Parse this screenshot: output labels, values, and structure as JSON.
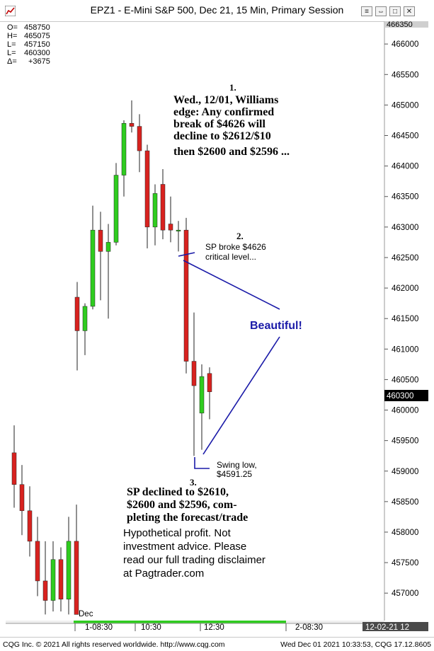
{
  "window": {
    "title": "EPZ1 - E-Mini S&P 500, Dec 21, 15 Min, Primary Session",
    "buttons": [
      "≡",
      "⇔",
      "□",
      "✕"
    ]
  },
  "ohlc_box": [
    {
      "k": "O=",
      "v": "458750"
    },
    {
      "k": "H=",
      "v": "465075"
    },
    {
      "k": "L=",
      "v": "457150"
    },
    {
      "k": "L=",
      "v": "460300"
    },
    {
      "k": "Δ=",
      "v": "+3675"
    }
  ],
  "colors": {
    "up": "#2fcc1f",
    "down": "#d8221f",
    "annotation": "#1a1aa8"
  },
  "chart_data": {
    "type": "candlestick",
    "ylim": [
      456550,
      466350
    ],
    "y_ticks": [
      "466000",
      "465500",
      "465000",
      "464500",
      "464000",
      "463500",
      "463000",
      "462500",
      "462000",
      "461500",
      "461000",
      "460500",
      "460000",
      "459500",
      "459000",
      "458500",
      "458000",
      "457500",
      "457000"
    ],
    "top_tick_label": "466350",
    "last_price_label": "460300",
    "last_price": 460300,
    "candles": [
      {
        "x": 0,
        "o": 459300,
        "h": 459750,
        "l": 458400,
        "c": 458780
      },
      {
        "x": 1,
        "o": 458780,
        "h": 459100,
        "l": 457950,
        "c": 458350
      },
      {
        "x": 2,
        "o": 458350,
        "h": 458750,
        "l": 457600,
        "c": 457850
      },
      {
        "x": 3,
        "o": 457850,
        "h": 458250,
        "l": 456950,
        "c": 457200
      },
      {
        "x": 4,
        "o": 457200,
        "h": 457850,
        "l": 456650,
        "c": 456880
      },
      {
        "x": 5,
        "o": 456880,
        "h": 457850,
        "l": 456700,
        "c": 457550
      },
      {
        "x": 6,
        "o": 457550,
        "h": 457750,
        "l": 456700,
        "c": 456900
      },
      {
        "x": 7,
        "o": 456900,
        "h": 458250,
        "l": 456650,
        "c": 457850
      },
      {
        "x": 8,
        "o": 457850,
        "h": 458450,
        "l": 456650,
        "c": 456650
      },
      {
        "x": 9,
        "o": 461850,
        "h": 462100,
        "l": 460650,
        "c": 461300
      },
      {
        "x": 10,
        "o": 461300,
        "h": 461750,
        "l": 460900,
        "c": 461700
      },
      {
        "x": 11,
        "o": 461700,
        "h": 463350,
        "l": 461650,
        "c": 462950
      },
      {
        "x": 12,
        "o": 462950,
        "h": 463250,
        "l": 461800,
        "c": 462600
      },
      {
        "x": 13,
        "o": 462600,
        "h": 463050,
        "l": 461500,
        "c": 462750
      },
      {
        "x": 14,
        "o": 462750,
        "h": 464050,
        "l": 462700,
        "c": 463850
      },
      {
        "x": 15,
        "o": 463850,
        "h": 464750,
        "l": 463500,
        "c": 464700
      },
      {
        "x": 16,
        "o": 464700,
        "h": 465075,
        "l": 464550,
        "c": 464650
      },
      {
        "x": 17,
        "o": 464650,
        "h": 464850,
        "l": 463900,
        "c": 464250
      },
      {
        "x": 18,
        "o": 464250,
        "h": 464350,
        "l": 462650,
        "c": 463000
      },
      {
        "x": 19,
        "o": 463000,
        "h": 463700,
        "l": 462700,
        "c": 463550
      },
      {
        "x": 20,
        "o": 463700,
        "h": 463950,
        "l": 462800,
        "c": 462950
      },
      {
        "x": 21,
        "o": 463050,
        "h": 463500,
        "l": 462750,
        "c": 462950
      },
      {
        "x": 22,
        "o": 462950,
        "h": 463100,
        "l": 462600,
        "c": 462950
      },
      {
        "x": 23,
        "o": 462950,
        "h": 463150,
        "l": 460600,
        "c": 460800
      },
      {
        "x": 24,
        "o": 460800,
        "h": 461600,
        "l": 459250,
        "c": 460400
      },
      {
        "x": 25,
        "o": 459950,
        "h": 460750,
        "l": 459350,
        "c": 460550
      },
      {
        "x": 26,
        "o": 460600,
        "h": 460700,
        "l": 459850,
        "c": 460300
      }
    ],
    "x_labels": [
      "Dec",
      "1-08:30",
      "10:30",
      "12:30",
      "2-08:30",
      "12-02-21 12"
    ]
  },
  "annotations": {
    "n1": "1.",
    "a1": [
      "Wed., 12/01, Williams",
      "edge: Any confirmed",
      "break of $4626 will",
      "decline to $2612/$10",
      "then $2600 and $2596 ..."
    ],
    "n2": "2.",
    "a2": [
      "SP broke $4626",
      "critical level..."
    ],
    "beautiful": "Beautiful!",
    "swing": [
      "Swing low,",
      "$4591.25"
    ],
    "n3": "3.",
    "a3": [
      "SP declined to $2610,",
      "$2600 and $2596, com-",
      "pleting the forecast/trade"
    ],
    "disclaimer": [
      "Hypothetical profit. Not",
      "investment advice. Please",
      "read our full trading disclaimer",
      "at Pagtrader.com"
    ]
  },
  "footer": {
    "left": "CQG Inc. © 2021 All rights reserved worldwide. http://www.cqg.com",
    "right": "Wed Dec 01 2021 10:33:53, CQG 17.12.8605"
  }
}
